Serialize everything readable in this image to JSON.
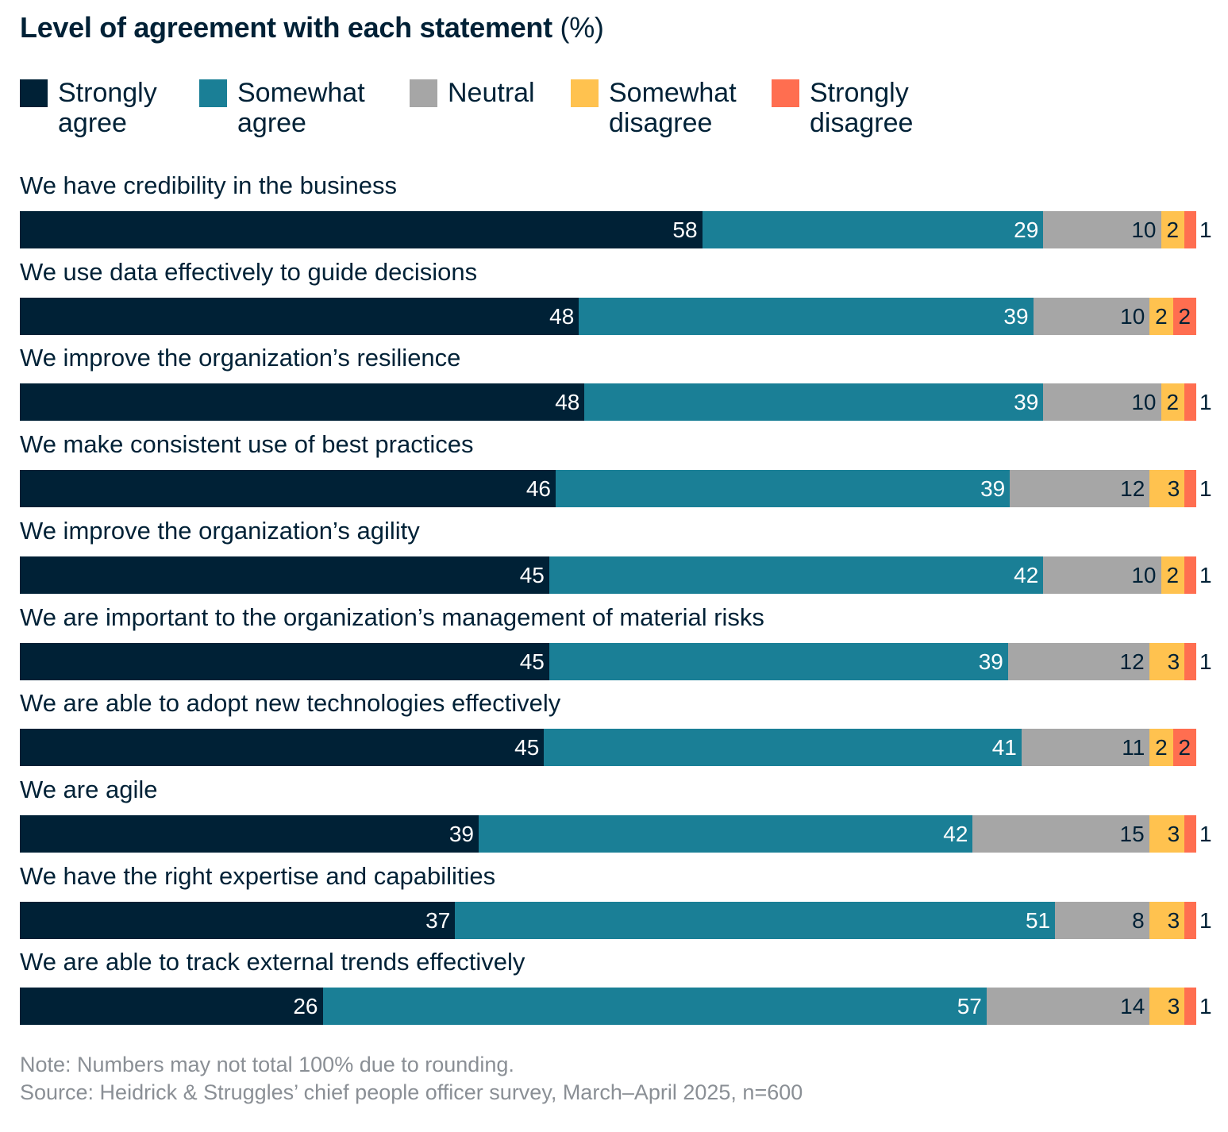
{
  "chart_data": {
    "type": "bar",
    "orientation": "horizontal",
    "stacked": true,
    "title": "Level of agreement with each statement",
    "title_unit": "(%)",
    "categories": [
      "We have credibility in the business",
      "We use data effectively to guide decisions",
      "We improve the organization’s resilience",
      "We make consistent use of best practices",
      "We improve the organization’s agility",
      "We are important to the organization’s management of material risks",
      "We are able to adopt new technologies effectively",
      "We are agile",
      "We have the right expertise and capabilities",
      "We are able to track external trends effectively"
    ],
    "series": [
      {
        "name": "Strongly agree",
        "legend_lines": [
          "Strongly",
          "agree"
        ],
        "color": "#002136",
        "values": [
          58,
          48,
          48,
          46,
          45,
          45,
          45,
          39,
          37,
          26
        ]
      },
      {
        "name": "Somewhat agree",
        "legend_lines": [
          "Somewhat",
          "agree"
        ],
        "color": "#1a7f96",
        "values": [
          29,
          39,
          39,
          39,
          42,
          39,
          41,
          42,
          51,
          57
        ]
      },
      {
        "name": "Neutral",
        "legend_lines": [
          "Neutral",
          ""
        ],
        "color": "#a6a6a6",
        "values": [
          10,
          10,
          10,
          12,
          10,
          12,
          11,
          15,
          8,
          14
        ]
      },
      {
        "name": "Somewhat disagree",
        "legend_lines": [
          "Somewhat",
          "disagree"
        ],
        "color": "#ffc24f",
        "values": [
          2,
          2,
          2,
          3,
          2,
          3,
          2,
          3,
          3,
          3
        ]
      },
      {
        "name": "Strongly disagree",
        "legend_lines": [
          "Strongly",
          "disagree"
        ],
        "color": "#ff6e50",
        "values": [
          1,
          2,
          1,
          1,
          1,
          1,
          2,
          1,
          1,
          1
        ]
      }
    ],
    "legend_position": "top-left",
    "grid": false
  },
  "notes": {
    "note": "Note: Numbers may not total 100% due to rounding.",
    "source": "Source: Heidrick & Struggles’ chief people officer survey, March–April 2025, n=600"
  }
}
